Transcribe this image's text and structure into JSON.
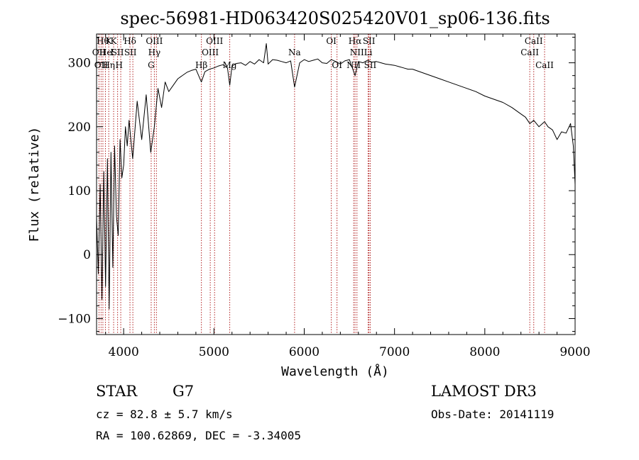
{
  "chart_data": {
    "type": "line",
    "title": "spec-56981-HD063420S025420V01_sp06-136.fits",
    "xlabel": "Wavelength (Å)",
    "ylabel": "Flux (relative)",
    "xlim": [
      3700,
      9000
    ],
    "ylim": [
      -125,
      345
    ],
    "xticks": [
      4000,
      5000,
      6000,
      7000,
      8000,
      9000
    ],
    "yticks": [
      -100,
      0,
      100,
      200,
      300
    ],
    "series": [
      {
        "name": "flux",
        "x": [
          3700,
          3720,
          3740,
          3760,
          3780,
          3800,
          3820,
          3840,
          3860,
          3880,
          3900,
          3920,
          3940,
          3960,
          3980,
          4000,
          4020,
          4040,
          4060,
          4080,
          4100,
          4150,
          4200,
          4250,
          4300,
          4340,
          4380,
          4420,
          4460,
          4500,
          4550,
          4600,
          4650,
          4700,
          4750,
          4800,
          4861,
          4900,
          4950,
          5000,
          5050,
          5100,
          5150,
          5175,
          5200,
          5250,
          5300,
          5350,
          5400,
          5450,
          5500,
          5550,
          5580,
          5600,
          5650,
          5700,
          5750,
          5800,
          5850,
          5893,
          5950,
          6000,
          6050,
          6100,
          6150,
          6200,
          6250,
          6300,
          6350,
          6400,
          6450,
          6500,
          6563,
          6600,
          6650,
          6700,
          6750,
          6800,
          6850,
          6900,
          6950,
          7000,
          7050,
          7100,
          7150,
          7200,
          7300,
          7400,
          7500,
          7600,
          7700,
          7800,
          7900,
          8000,
          8100,
          8200,
          8300,
          8400,
          8450,
          8498,
          8542,
          8600,
          8662,
          8700,
          8750,
          8800,
          8850,
          8900,
          8950,
          8980,
          9000
        ],
        "values": [
          60,
          -30,
          110,
          -70,
          130,
          -50,
          150,
          -85,
          160,
          -20,
          170,
          60,
          30,
          180,
          120,
          140,
          200,
          170,
          210,
          180,
          150,
          240,
          180,
          250,
          160,
          200,
          260,
          230,
          270,
          255,
          265,
          275,
          280,
          285,
          288,
          290,
          270,
          286,
          290,
          292,
          295,
          297,
          292,
          265,
          295,
          299,
          300,
          296,
          302,
          298,
          305,
          300,
          330,
          298,
          305,
          304,
          302,
          300,
          303,
          262,
          300,
          305,
          302,
          304,
          306,
          300,
          299,
          305,
          302,
          298,
          303,
          305,
          280,
          302,
          300,
          304,
          301,
          302,
          300,
          298,
          297,
          296,
          294,
          292,
          290,
          290,
          285,
          280,
          275,
          270,
          265,
          260,
          255,
          248,
          243,
          238,
          230,
          220,
          215,
          205,
          210,
          200,
          208,
          200,
          195,
          180,
          192,
          190,
          205,
          170,
          110
        ]
      }
    ],
    "line_labels": [
      {
        "wavelength": 3727,
        "row": 1,
        "text": "OII"
      },
      {
        "wavelength": 3750,
        "row": 2,
        "text": "OII"
      },
      {
        "wavelength": 3770,
        "row": 0,
        "text": "Hθ"
      },
      {
        "wavelength": 3800,
        "row": 1,
        "text": "He"
      },
      {
        "wavelength": 3835,
        "row": 0,
        "text": "K"
      },
      {
        "wavelength": 3835,
        "row": 2,
        "text": "Hη"
      },
      {
        "wavelength": 3870,
        "row": 1,
        "text": "I"
      },
      {
        "wavelength": 3889,
        "row": 0,
        "text": "K"
      },
      {
        "wavelength": 3933,
        "row": 1,
        "text": "SII"
      },
      {
        "wavelength": 3950,
        "row": 2,
        "text": "H"
      },
      {
        "wavelength": 4070,
        "row": 0,
        "text": "Hδ"
      },
      {
        "wavelength": 4075,
        "row": 1,
        "text": "SII"
      },
      {
        "wavelength": 4340,
        "row": 0,
        "text": "OIII"
      },
      {
        "wavelength": 4340,
        "row": 1,
        "text": "Hγ"
      },
      {
        "wavelength": 4305,
        "row": 2,
        "text": "G"
      },
      {
        "wavelength": 4861,
        "row": 2,
        "text": "Hβ"
      },
      {
        "wavelength": 5007,
        "row": 0,
        "text": "OIII"
      },
      {
        "wavelength": 4959,
        "row": 1,
        "text": "OIII"
      },
      {
        "wavelength": 5175,
        "row": 2,
        "text": "Mg"
      },
      {
        "wavelength": 5893,
        "row": 1,
        "text": "Na"
      },
      {
        "wavelength": 6300,
        "row": 0,
        "text": "OI"
      },
      {
        "wavelength": 6363,
        "row": 2,
        "text": "OI"
      },
      {
        "wavelength": 6563,
        "row": 0,
        "text": "Hα"
      },
      {
        "wavelength": 6584,
        "row": 1,
        "text": "NII"
      },
      {
        "wavelength": 6548,
        "row": 2,
        "text": "NII"
      },
      {
        "wavelength": 6717,
        "row": 0,
        "text": "SII"
      },
      {
        "wavelength": 6708,
        "row": 1,
        "text": "Li"
      },
      {
        "wavelength": 6731,
        "row": 2,
        "text": "SII"
      },
      {
        "wavelength": 8542,
        "row": 0,
        "text": "CaII"
      },
      {
        "wavelength": 8498,
        "row": 1,
        "text": "CaII"
      },
      {
        "wavelength": 8662,
        "row": 2,
        "text": "CaII"
      }
    ],
    "line_markers": [
      3727,
      3750,
      3770,
      3798,
      3835,
      3889,
      3933,
      3968,
      4070,
      4102,
      4305,
      4340,
      4363,
      4861,
      4959,
      5007,
      5175,
      5893,
      6300,
      6363,
      6548,
      6563,
      6584,
      6708,
      6717,
      6731,
      8498,
      8542,
      8662
    ]
  },
  "info": {
    "object_type": "STAR",
    "subclass": "G7",
    "survey": "LAMOST DR3",
    "cz": "cz = 82.8 ± 5.7 km/s",
    "obs_date": "Obs-Date: 20141119",
    "coords": "RA = 100.62869, DEC =  -3.34005"
  },
  "colors": {
    "line": "#000000",
    "marker": "#b22222",
    "background": "#ffffff"
  }
}
